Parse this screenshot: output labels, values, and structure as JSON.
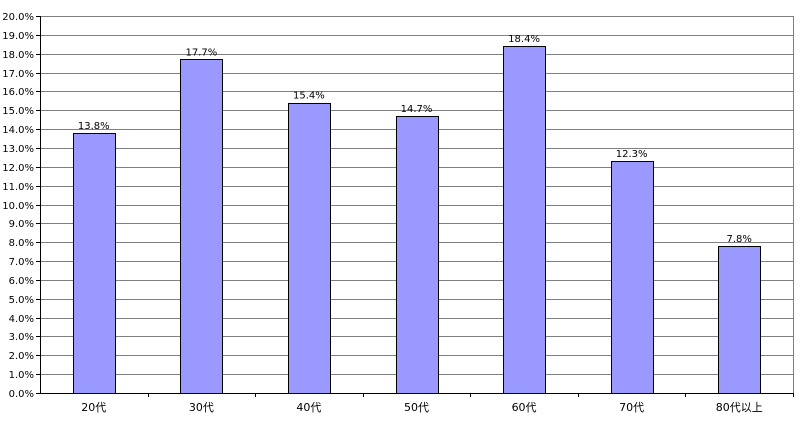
{
  "chart_data": {
    "type": "bar",
    "categories": [
      "20代",
      "30代",
      "40代",
      "50代",
      "60代",
      "70代",
      "80代以上"
    ],
    "values": [
      13.8,
      17.7,
      15.4,
      14.7,
      18.4,
      12.3,
      7.8
    ],
    "value_labels": [
      "13.8%",
      "17.7%",
      "15.4%",
      "14.7%",
      "18.4%",
      "12.3%",
      "7.8%"
    ],
    "title": "",
    "xlabel": "",
    "ylabel": "",
    "ylim": [
      0,
      20
    ],
    "ytick_step": 1,
    "ytick_format": "percent_1dp",
    "grid": true,
    "legend": "none",
    "colors": {
      "bar_fill": "#9999ff",
      "bar_stroke": "#000000",
      "grid": "#808080",
      "axis": "#000000"
    }
  }
}
